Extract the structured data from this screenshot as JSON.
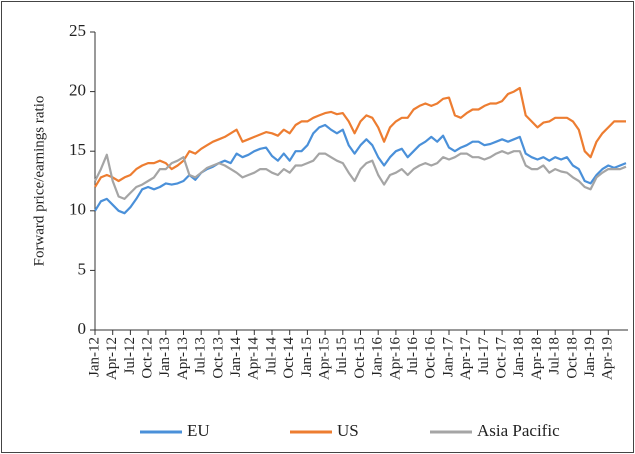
{
  "chart_data": {
    "type": "line",
    "ylabel": "Forward price/earnings ratio",
    "categories": [
      "Jan-12",
      null,
      null,
      "Apr-12",
      null,
      null,
      "Jul-12",
      null,
      null,
      "Oct-12",
      null,
      null,
      "Jan-13",
      null,
      null,
      "Apr-13",
      null,
      null,
      "Jul-13",
      null,
      null,
      "Oct-13",
      null,
      null,
      "Jan-14",
      null,
      null,
      "Apr-14",
      null,
      null,
      "Jul-14",
      null,
      null,
      "Oct-14",
      null,
      null,
      "Jan-15",
      null,
      null,
      "Apr-15",
      null,
      null,
      "Jul-15",
      null,
      null,
      "Oct-15",
      null,
      null,
      "Jan-16",
      null,
      null,
      "Apr-16",
      null,
      null,
      "Jul-16",
      null,
      null,
      "Oct-16",
      null,
      null,
      "Jan-17",
      null,
      null,
      "Apr-17",
      null,
      null,
      "Jul-17",
      null,
      null,
      "Oct-17",
      null,
      null,
      "Jan-18",
      null,
      null,
      "Apr-18",
      null,
      null,
      "Jul-18",
      null,
      null,
      "Oct-18",
      null,
      null,
      "Jan-19",
      null,
      null,
      "Apr-19",
      null,
      null,
      null
    ],
    "series": [
      {
        "name": "EU",
        "color": "#4a90d9",
        "values": [
          10,
          10.8,
          11,
          10.5,
          10,
          9.8,
          10.3,
          11,
          11.8,
          12,
          11.8,
          12,
          12.3,
          12.2,
          12.3,
          12.5,
          13,
          12.6,
          13.2,
          13.5,
          13.7,
          14,
          14.2,
          14,
          14.8,
          14.5,
          14.7,
          15,
          15.2,
          15.3,
          14.6,
          14.2,
          14.8,
          14.2,
          15,
          15,
          15.5,
          16.5,
          17,
          17.2,
          16.8,
          16.5,
          16.8,
          15.5,
          14.8,
          15.5,
          16,
          15.5,
          14.5,
          13.8,
          14.5,
          15,
          15.2,
          14.5,
          15,
          15.5,
          15.8,
          16.2,
          15.8,
          16.3,
          15.3,
          15,
          15.3,
          15.5,
          15.8,
          15.8,
          15.5,
          15.6,
          15.8,
          16,
          15.8,
          16,
          16.2,
          14.8,
          14.5,
          14.3,
          14.5,
          14.2,
          14.5,
          14.3,
          14.5,
          13.8,
          13.5,
          12.5,
          12.3,
          13,
          13.5,
          13.8,
          13.6,
          13.8,
          14
        ]
      },
      {
        "name": "US",
        "color": "#ed7d31",
        "values": [
          12,
          12.8,
          13,
          12.8,
          12.5,
          12.8,
          13,
          13.5,
          13.8,
          14,
          14,
          14.2,
          14,
          13.5,
          13.8,
          14.2,
          15,
          14.8,
          15.2,
          15.5,
          15.8,
          16,
          16.2,
          16.5,
          16.8,
          15.8,
          16,
          16.2,
          16.4,
          16.6,
          16.5,
          16.3,
          16.8,
          16.5,
          17.2,
          17.5,
          17.5,
          17.8,
          18,
          18.2,
          18.3,
          18.1,
          18.2,
          17.5,
          16.5,
          17.5,
          18,
          17.8,
          17,
          15.8,
          17,
          17.5,
          17.8,
          17.8,
          18.5,
          18.8,
          19,
          18.8,
          19,
          19.4,
          19.5,
          18,
          17.8,
          18.2,
          18.5,
          18.5,
          18.8,
          19,
          19,
          19.2,
          19.8,
          20,
          20.3,
          18,
          17.5,
          17,
          17.4,
          17.5,
          17.8,
          17.8,
          17.8,
          17.5,
          16.8,
          15,
          14.5,
          15.8,
          16.5,
          17,
          17.5,
          17.5,
          17.5
        ]
      },
      {
        "name": "Asia Pacific",
        "color": "#a5a5a5",
        "values": [
          12.5,
          13.5,
          14.7,
          12.5,
          11.2,
          11,
          11.5,
          12,
          12.2,
          12.5,
          12.8,
          13.5,
          13.5,
          14,
          14.2,
          14.5,
          13,
          12.8,
          13.2,
          13.6,
          13.8,
          14,
          13.8,
          13.5,
          13.2,
          12.8,
          13,
          13.2,
          13.5,
          13.5,
          13.2,
          13,
          13.5,
          13.2,
          13.8,
          13.8,
          14,
          14.2,
          14.8,
          14.8,
          14.5,
          14.2,
          14,
          13.2,
          12.5,
          13.5,
          14,
          14.2,
          13,
          12.2,
          13,
          13.2,
          13.5,
          13,
          13.5,
          13.8,
          14,
          13.8,
          14,
          14.5,
          14.3,
          14.5,
          14.8,
          14.8,
          14.5,
          14.5,
          14.3,
          14.5,
          14.8,
          15,
          14.8,
          15,
          15,
          13.8,
          13.5,
          13.5,
          13.8,
          13.2,
          13.5,
          13.3,
          13.2,
          12.8,
          12.5,
          12,
          11.8,
          12.8,
          13.2,
          13.5,
          13.5,
          13.5,
          13.7
        ]
      }
    ],
    "ylim": [
      0,
      25
    ],
    "yticks": [
      0,
      5,
      10,
      15,
      20,
      25
    ],
    "grid": false,
    "legend": "bottom"
  }
}
